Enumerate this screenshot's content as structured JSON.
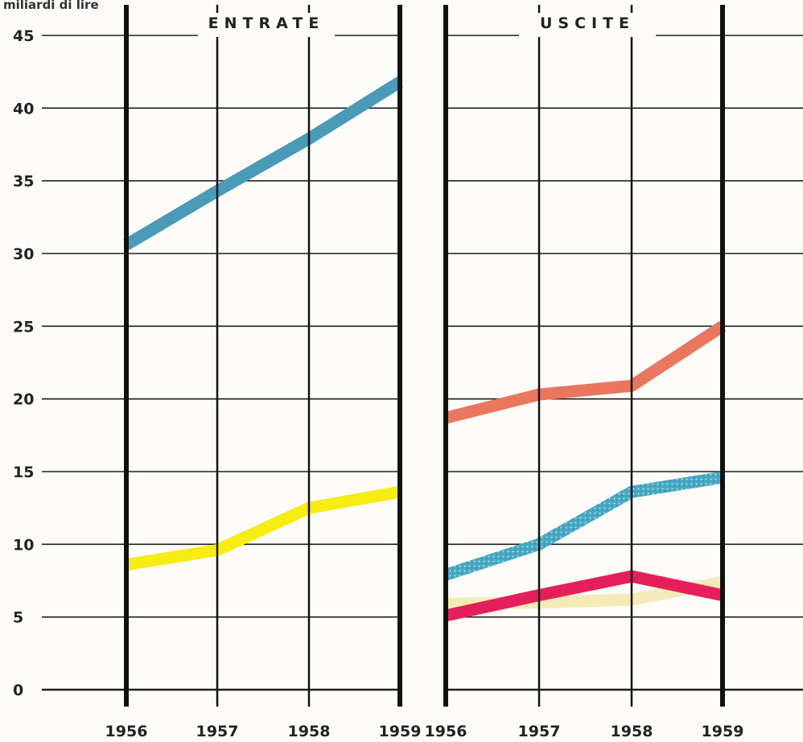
{
  "chart_data": {
    "type": "line",
    "unit_label": "miliardi di lire",
    "ylim": [
      0,
      45
    ],
    "yticks": [
      "0",
      "5",
      "10",
      "15",
      "20",
      "25",
      "30",
      "35",
      "40",
      "45"
    ],
    "grid": true,
    "panels": [
      {
        "title": "ENTRATE",
        "x": [
          "1956",
          "1957",
          "1958",
          "1959"
        ],
        "series": [
          {
            "color": "#4a9ab8",
            "style": "solid",
            "values": [
              30.6,
              34.3,
              37.9,
              41.8
            ]
          },
          {
            "color": "#f7ec13",
            "style": "solid",
            "values": [
              8.6,
              9.6,
              12.5,
              13.6
            ]
          }
        ]
      },
      {
        "title": "USCITE",
        "x": [
          "1956",
          "1957",
          "1958",
          "1959"
        ],
        "series": [
          {
            "color": "#e8775e",
            "style": "solid",
            "values": [
              18.7,
              20.3,
              20.9,
              25.0
            ]
          },
          {
            "color": "#48aac4",
            "style": "speckled",
            "values": [
              7.9,
              10.0,
              13.6,
              14.6
            ]
          },
          {
            "color": "#f3e9b0",
            "style": "solid",
            "values": [
              5.9,
              6.0,
              6.2,
              7.4
            ]
          },
          {
            "color": "#e51f5a",
            "style": "solid",
            "values": [
              5.1,
              6.5,
              7.8,
              6.5
            ]
          }
        ]
      }
    ]
  }
}
